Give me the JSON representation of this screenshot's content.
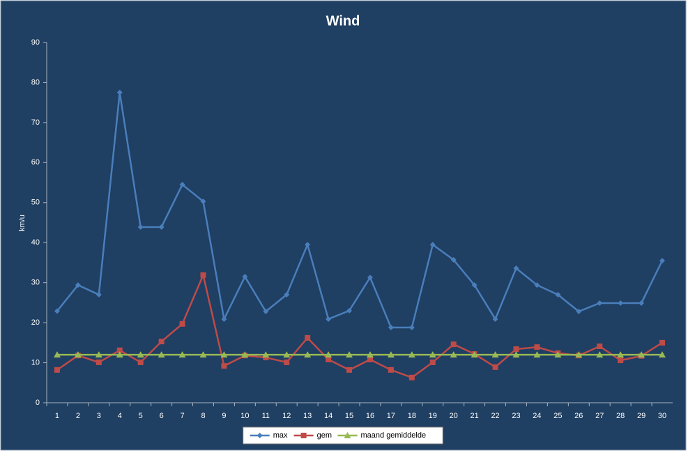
{
  "chart_data": {
    "type": "line",
    "title": "Wind",
    "y_label": "km/u",
    "categories": [
      "1",
      "2",
      "3",
      "4",
      "5",
      "6",
      "7",
      "8",
      "9",
      "10",
      "11",
      "12",
      "13",
      "14",
      "15",
      "16",
      "17",
      "18",
      "19",
      "20",
      "21",
      "22",
      "23",
      "24",
      "25",
      "26",
      "27",
      "28",
      "29",
      "30"
    ],
    "series": [
      {
        "name": "max",
        "color": "#4a7ebb",
        "marker": "diamond",
        "values": [
          22.9,
          29.4,
          27.0,
          77.5,
          43.9,
          43.9,
          54.5,
          50.3,
          20.9,
          31.5,
          22.8,
          27.0,
          39.5,
          20.9,
          23.0,
          31.3,
          18.8,
          18.8,
          39.5,
          35.7,
          29.4,
          20.9,
          33.6,
          29.4,
          27.0,
          22.8,
          24.9,
          24.9,
          24.9,
          35.5
        ]
      },
      {
        "name": "gem",
        "color": "#be4b48",
        "marker": "square",
        "values": [
          8.2,
          11.8,
          10.1,
          13.1,
          10.1,
          15.3,
          19.7,
          31.9,
          9.2,
          11.8,
          11.3,
          10.1,
          16.2,
          10.8,
          8.2,
          10.8,
          8.2,
          6.3,
          10.1,
          14.6,
          12.2,
          8.9,
          13.4,
          13.9,
          12.4,
          11.8,
          14.1,
          10.6,
          11.7,
          15.0
        ]
      },
      {
        "name": "maand gemiddelde",
        "color": "#98b954",
        "marker": "triangle",
        "values": [
          12,
          12,
          12,
          12,
          12,
          12,
          12,
          12,
          12,
          12,
          12,
          12,
          12,
          12,
          12,
          12,
          12,
          12,
          12,
          12,
          12,
          12,
          12,
          12,
          12,
          12,
          12,
          12,
          12,
          12
        ]
      }
    ],
    "ylim": [
      0,
      90
    ],
    "yticks": [
      0,
      10,
      20,
      30,
      40,
      50,
      60,
      70,
      80,
      90
    ],
    "legend": "bottom"
  }
}
